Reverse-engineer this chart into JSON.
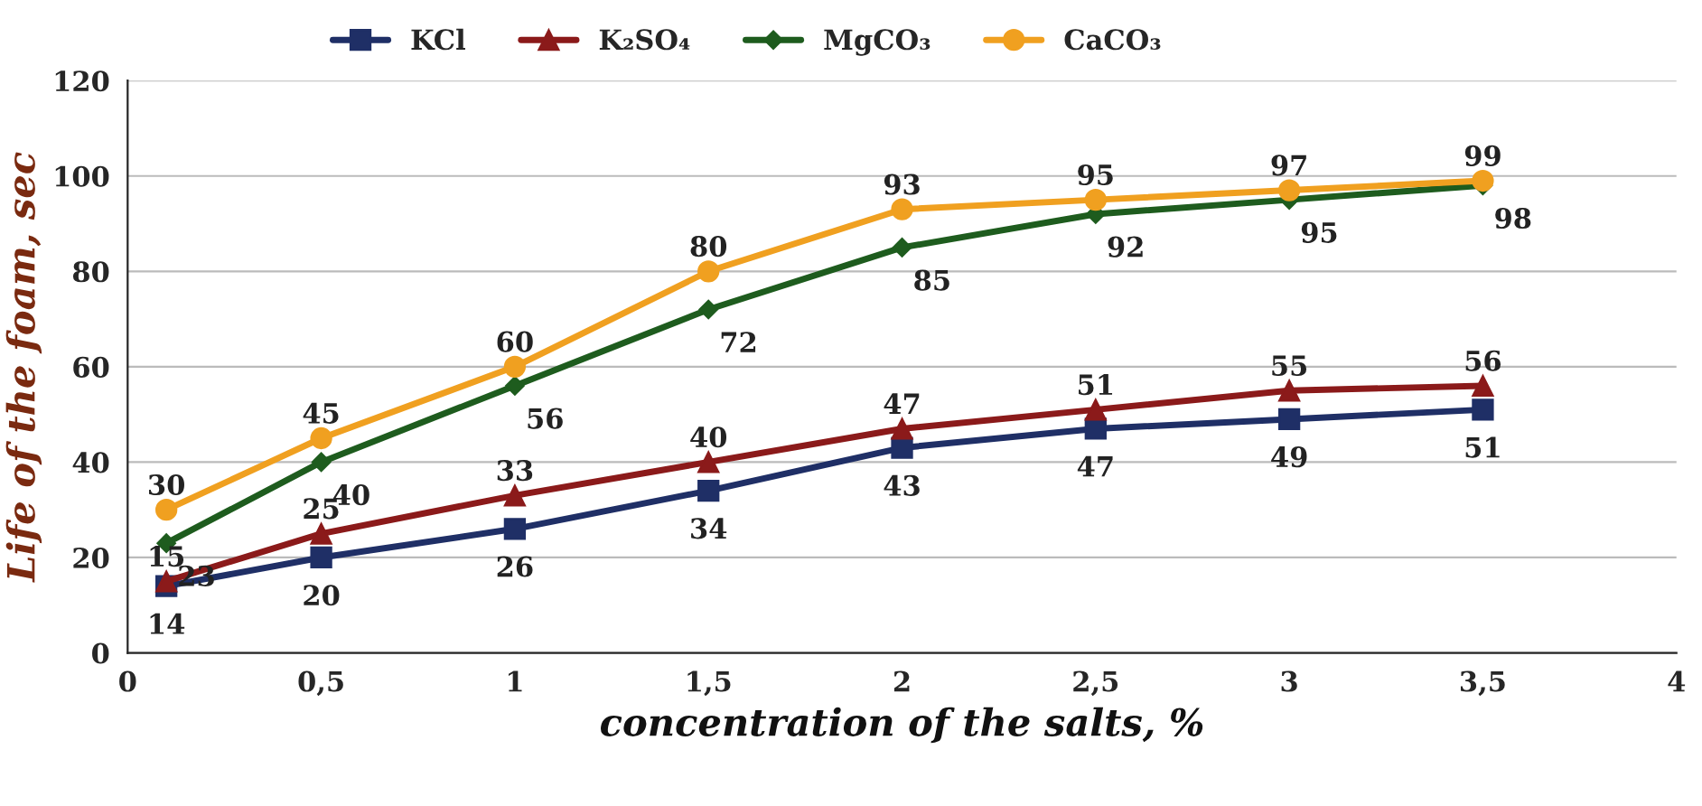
{
  "chart_data": {
    "type": "line",
    "xlabel": "concentration of the salts, %",
    "ylabel": "Life of the foam, sec",
    "x": [
      0.1,
      0.5,
      1,
      1.5,
      2,
      2.5,
      3,
      3.5
    ],
    "series": [
      {
        "name": "KCl",
        "color": "#1f2f66",
        "marker": "square",
        "values": [
          14,
          20,
          26,
          34,
          43,
          47,
          49,
          51
        ]
      },
      {
        "name": "K₂SO₄",
        "color": "#8b1a1a",
        "marker": "triangle",
        "values": [
          15,
          25,
          33,
          40,
          47,
          51,
          55,
          56
        ]
      },
      {
        "name": "MgCO₃",
        "color": "#1e5c1e",
        "marker": "diamond",
        "values": [
          23,
          40,
          56,
          72,
          85,
          92,
          95,
          98
        ]
      },
      {
        "name": "CaCO₃",
        "color": "#f0a020",
        "marker": "circle",
        "values": [
          30,
          45,
          60,
          80,
          93,
          95,
          97,
          99
        ]
      }
    ],
    "xlim": [
      0,
      4
    ],
    "xticks": [
      0,
      {
        "value": 0.5,
        "label": "0,5"
      },
      1,
      {
        "value": 1.5,
        "label": "1,5"
      },
      2,
      {
        "value": 2.5,
        "label": "2,5"
      },
      3,
      {
        "value": 3.5,
        "label": "3,5"
      },
      4
    ],
    "ylim": [
      0,
      120
    ],
    "yticks": [
      0,
      20,
      40,
      60,
      80,
      100,
      120
    ],
    "grid": "y",
    "legend": "top",
    "data_labels": true,
    "line_style": "solid"
  }
}
